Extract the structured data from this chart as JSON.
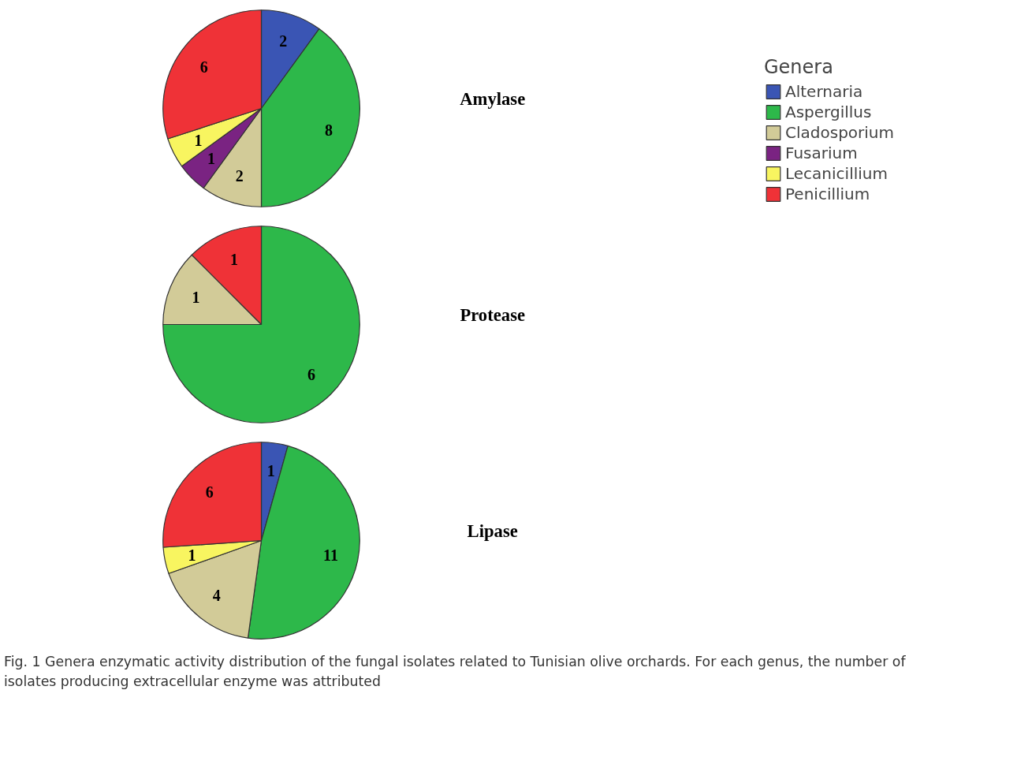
{
  "chart_data": [
    {
      "type": "pie",
      "title": "Amylase",
      "categories": [
        "Alternaria",
        "Aspergillus",
        "Cladosporium",
        "Fusarium",
        "Lecanicillium",
        "Penicillium"
      ],
      "values": [
        2,
        8,
        2,
        1,
        1,
        6
      ],
      "colors": [
        "#3a55b4",
        "#2db84a",
        "#d2cb98",
        "#7a2382",
        "#f8f560",
        "#ef3237"
      ],
      "data_labels": true,
      "legend": "right",
      "legend_title": "Genera"
    },
    {
      "type": "pie",
      "title": "Protease",
      "categories": [
        null,
        null,
        null
      ],
      "values": [
        6,
        1,
        1
      ],
      "colors": [
        "#2db84a",
        "#d2cb98",
        "#ef3237"
      ],
      "data_labels": true
    },
    {
      "type": "pie",
      "title": "Lipase",
      "categories": [
        null,
        null,
        null,
        null,
        null
      ],
      "values": [
        1,
        11,
        4,
        1,
        6
      ],
      "colors": [
        "#3a55b4",
        "#2db84a",
        "#d2cb98",
        "#f8f560",
        "#ef3237"
      ],
      "data_labels": true,
      "annotations": [
        "Fig. 1 Genera enzymatic activity distribution of the fungal isolates related to Tunisian olive orchards. For each genus, the number of isolates producing extracellular enzyme was attributed"
      ]
    }
  ]
}
